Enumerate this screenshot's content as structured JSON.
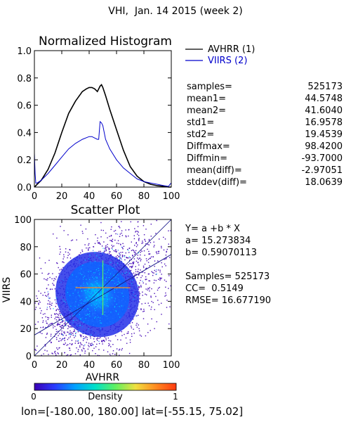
{
  "page_title": "VHI,  Jan. 14 2015 (week 2)",
  "histogram": {
    "title": "Normalized Histogram",
    "legend": [
      {
        "label": "AVHRR (1)",
        "color": "#000000"
      },
      {
        "label": "VIIRS (2)",
        "color": "#0000cc"
      }
    ],
    "stats": [
      {
        "label": "samples=",
        "value": "525173"
      },
      {
        "label": "mean1=",
        "value": "44.5748"
      },
      {
        "label": "mean2=",
        "value": "41.6040"
      },
      {
        "label": "std1=",
        "value": "16.9578"
      },
      {
        "label": "std2=",
        "value": "19.4539"
      },
      {
        "label": "Diffmax=",
        "value": "98.4200"
      },
      {
        "label": "Diffmin=",
        "value": "-93.7000"
      },
      {
        "label": "mean(diff)=",
        "value": "-2.97051"
      },
      {
        "label": "stddev(diff)=",
        "value": "18.0639"
      }
    ]
  },
  "scatter": {
    "title": "Scatter Plot",
    "fit": {
      "equation": "Y= a +b * X",
      "a": "a= 15.273834",
      "b": "b= 0.59070113",
      "samples": "Samples= 525173",
      "cc": "CC=  0.5149",
      "rmse": "RMSE= 16.677190"
    }
  },
  "colorbar": {
    "label": "Density",
    "min_label": "0",
    "max_label": "1",
    "colors": [
      "#3b00b4",
      "#2a3cff",
      "#00a0ff",
      "#00e0c8",
      "#60f060",
      "#f0e040",
      "#ff8a20",
      "#ff3a10"
    ]
  },
  "footer": "lon=[-180.00, 180.00] lat=[-55.15, 75.02]",
  "chart_data": [
    {
      "type": "line",
      "title": "Normalized Histogram",
      "xlabel": "",
      "ylabel": "",
      "xlim": [
        0,
        100
      ],
      "ylim": [
        0,
        1
      ],
      "x_ticks": [
        0,
        20,
        40,
        60,
        80,
        100
      ],
      "y_ticks": [
        "0.0",
        "0.2",
        "0.4",
        "0.6",
        "0.8",
        "1.0"
      ],
      "legend_position": "right, outside plot",
      "series": [
        {
          "name": "AVHRR (1)",
          "color": "#000000",
          "x": [
            0,
            2,
            5,
            10,
            15,
            20,
            25,
            30,
            35,
            38,
            40,
            42,
            44,
            46,
            48,
            49,
            50,
            52,
            55,
            60,
            65,
            70,
            75,
            80,
            85,
            90,
            95,
            98,
            100
          ],
          "y": [
            0.0,
            0.02,
            0.05,
            0.13,
            0.25,
            0.4,
            0.54,
            0.63,
            0.7,
            0.72,
            0.73,
            0.73,
            0.72,
            0.7,
            0.74,
            0.75,
            0.73,
            0.67,
            0.57,
            0.42,
            0.27,
            0.15,
            0.08,
            0.04,
            0.02,
            0.01,
            0.005,
            0.0,
            0.0
          ]
        },
        {
          "name": "VIIRS (2)",
          "color": "#0000cc",
          "x": [
            0,
            0.5,
            1,
            2,
            5,
            10,
            15,
            20,
            25,
            30,
            35,
            40,
            42,
            44,
            46,
            47,
            48,
            49,
            50,
            52,
            55,
            60,
            65,
            70,
            75,
            80,
            85,
            90,
            95,
            98,
            99,
            100
          ],
          "y": [
            0.25,
            0.1,
            0.03,
            0.03,
            0.05,
            0.1,
            0.16,
            0.22,
            0.28,
            0.32,
            0.35,
            0.37,
            0.37,
            0.36,
            0.35,
            0.35,
            0.48,
            0.47,
            0.45,
            0.35,
            0.28,
            0.2,
            0.14,
            0.1,
            0.06,
            0.04,
            0.03,
            0.02,
            0.01,
            0.005,
            0.02,
            0.03
          ]
        }
      ]
    },
    {
      "type": "heatmap",
      "title": "Scatter Plot",
      "xlabel": "AVHRR",
      "ylabel": "VIIRS",
      "xlim": [
        0,
        100
      ],
      "ylim": [
        0,
        100
      ],
      "x_ticks": [
        0,
        20,
        40,
        60,
        80,
        100
      ],
      "y_ticks": [
        0,
        20,
        40,
        60,
        80,
        100
      ],
      "density_center": [
        46,
        45
      ],
      "fit": {
        "a": 15.273834,
        "b": 0.59070113
      },
      "samples": 525173,
      "cc": 0.5149,
      "rmse": 16.67719
    }
  ]
}
